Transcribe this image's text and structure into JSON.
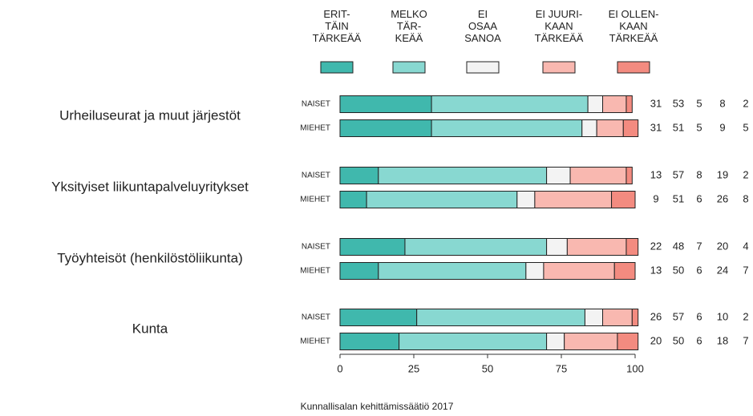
{
  "chart_data": {
    "type": "stacked-barh",
    "groups": [
      "Urheiluseurat ja muut järjestöt",
      "Yksityiset liikuntapalveluyritykset",
      "Työyhteisöt (henkilöstöliikunta)",
      "Kunta"
    ],
    "categories": [
      "NAISET",
      "MIEHET",
      "NAISET",
      "MIEHET",
      "NAISET",
      "MIEHET",
      "NAISET",
      "MIEHET"
    ],
    "series": [
      {
        "name": "ERIT-\nTÄIN\nTÄRKEÄÄ",
        "color": "#40b8ad",
        "values": [
          31,
          31,
          13,
          9,
          22,
          13,
          26,
          20
        ]
      },
      {
        "name": "MELKO\nTÄR-\nKEÄÄ",
        "color": "#88d8d1",
        "values": [
          53,
          51,
          57,
          51,
          48,
          50,
          57,
          50
        ]
      },
      {
        "name": "EI\nOSAA\nSANOA",
        "color": "#f3f3f3",
        "values": [
          5,
          5,
          8,
          6,
          7,
          6,
          6,
          6
        ]
      },
      {
        "name": "EI JUURI-\nKAAN\nTÄRKEÄÄ",
        "color": "#f9b8b0",
        "values": [
          8,
          9,
          19,
          26,
          20,
          24,
          10,
          18
        ]
      },
      {
        "name": "EI OLLEN-\nKAAN\nTÄRKEÄÄ",
        "color": "#f38b80",
        "values": [
          2,
          5,
          2,
          8,
          4,
          7,
          2,
          7
        ]
      }
    ],
    "xlim": [
      0,
      100
    ],
    "xticks": [
      0,
      25,
      50,
      75,
      100
    ],
    "source": "Kunnallisalan kehittämissäätiö 2017"
  }
}
